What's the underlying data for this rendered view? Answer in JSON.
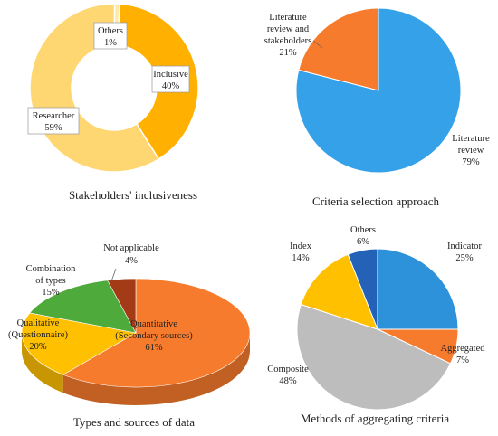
{
  "chart_data": [
    {
      "type": "donut",
      "title": "Stakeholders' inclusiveness",
      "slices": [
        {
          "name": "Inclusive",
          "value": 40,
          "label": "40%",
          "color": "#FFB000"
        },
        {
          "name": "Researcher",
          "value": 59,
          "label": "59%",
          "color": "#FFD772"
        },
        {
          "name": "Others",
          "value": 1,
          "label": "1%",
          "color": "#FFE9A8"
        }
      ]
    },
    {
      "type": "pie",
      "title": "Criteria selection approach",
      "slices": [
        {
          "name": "Literature review",
          "value": 79,
          "label": "79%",
          "color": "#35A1E8"
        },
        {
          "name": "Literature review and stakeholders",
          "value": 21,
          "label": "21%",
          "color": "#F77B2C"
        }
      ]
    },
    {
      "type": "pie",
      "title": "Types and sources of data",
      "slices": [
        {
          "name": "Quantitative (Secondary sources)",
          "value": 61,
          "label": "61%",
          "color": "#F77B2C"
        },
        {
          "name": "Qualitative (Questionnaire)",
          "value": 20,
          "label": "20%",
          "color": "#FFC000"
        },
        {
          "name": "Combination of types",
          "value": 15,
          "label": "15%",
          "color": "#4EAA3A"
        },
        {
          "name": "Not applicable",
          "value": 4,
          "label": "4%",
          "color": "#A33C16"
        }
      ]
    },
    {
      "type": "pie",
      "title": "Methods of aggregating criteria",
      "slices": [
        {
          "name": "Indicator",
          "value": 25,
          "label": "25%",
          "color": "#2E92DB"
        },
        {
          "name": "Aggregated",
          "value": 7,
          "label": "7%",
          "color": "#F77B2C"
        },
        {
          "name": "Composite",
          "value": 48,
          "label": "48%",
          "color": "#BDBDBD"
        },
        {
          "name": "Index",
          "value": 14,
          "label": "14%",
          "color": "#FFC000"
        },
        {
          "name": "Others",
          "value": 6,
          "label": "6%",
          "color": "#2462B7"
        }
      ]
    }
  ]
}
